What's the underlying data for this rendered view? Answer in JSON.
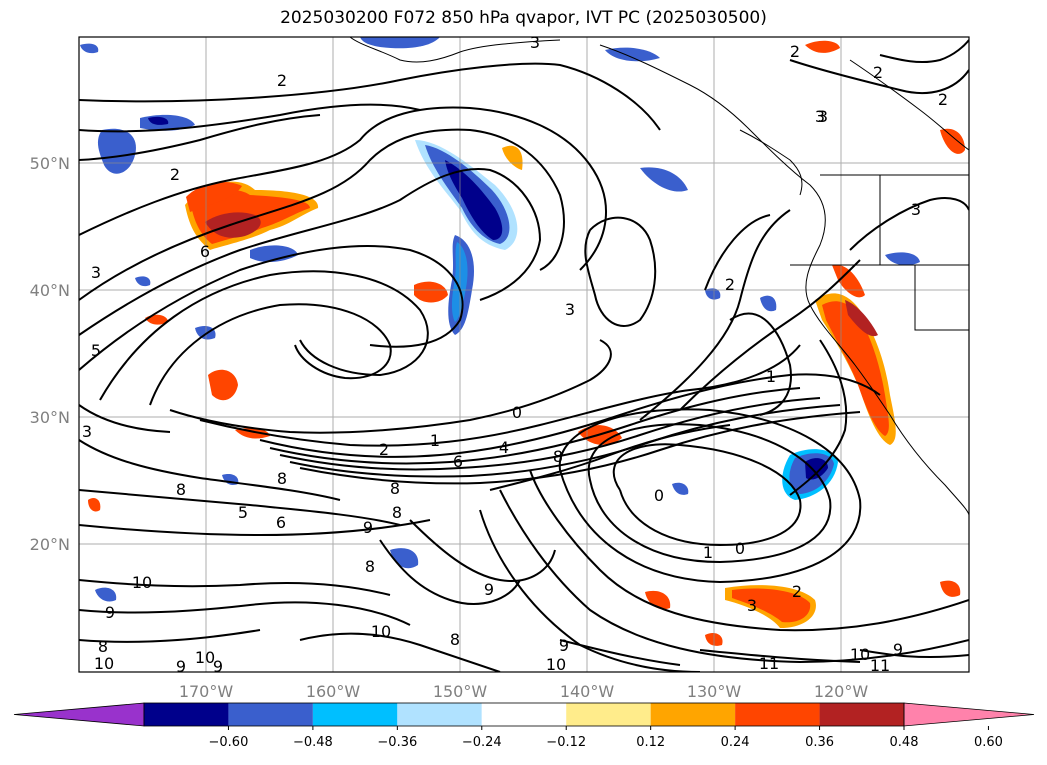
{
  "title": "2025030200 F072 850 hPa qvapor, IVT PC (2025030500)",
  "lat_labels": [
    "50°N",
    "40°N",
    "30°N",
    "20°N"
  ],
  "lon_labels": [
    "170°W",
    "160°W",
    "150°W",
    "140°W",
    "130°W",
    "120°W"
  ],
  "colorbar": {
    "colors": [
      "#9932CC",
      "#00008B",
      "#3A5FCD",
      "#00BFFF",
      "#B0E2FF",
      "#FFFFFF",
      "#FFEC8B",
      "#FFA500",
      "#FF4500",
      "#B22222",
      "#FF82AB"
    ],
    "tick_labels": [
      "−0.60",
      "−0.48",
      "−0.36",
      "−0.24",
      "−0.12",
      "0.12",
      "0.24",
      "0.36",
      "0.48",
      "0.60"
    ],
    "extend": "both"
  },
  "contour_labels": [
    "2",
    "2",
    "2",
    "2",
    "3",
    "3",
    "3",
    "2",
    "2",
    "3",
    "6",
    "5",
    "3",
    "0",
    "1",
    "2",
    "4",
    "6",
    "8",
    "8",
    "8",
    "8",
    "8",
    "5",
    "6",
    "9",
    "8",
    "0",
    "1",
    "0",
    "1",
    "3",
    "3",
    "10",
    "9",
    "8",
    "10",
    "9",
    "10",
    "9",
    "9",
    "10",
    "9",
    "10",
    "11",
    "10",
    "11",
    "9",
    "8",
    "3",
    "2"
  ],
  "chart_data": {
    "type": "map",
    "title": "2025030200 F072 850 hPa qvapor, IVT PC (2025030500)",
    "lon_range": [
      "180°W",
      "110°W"
    ],
    "lat_range": [
      "10°N",
      "60°N"
    ],
    "grid": true,
    "shaded_field_levels": [
      -0.6,
      -0.48,
      -0.36,
      -0.24,
      -0.12,
      0.12,
      0.24,
      0.36,
      0.48,
      0.6
    ],
    "contour_levels_labeled": [
      0,
      1,
      2,
      3,
      4,
      5,
      6,
      8,
      9,
      10,
      11
    ]
  }
}
